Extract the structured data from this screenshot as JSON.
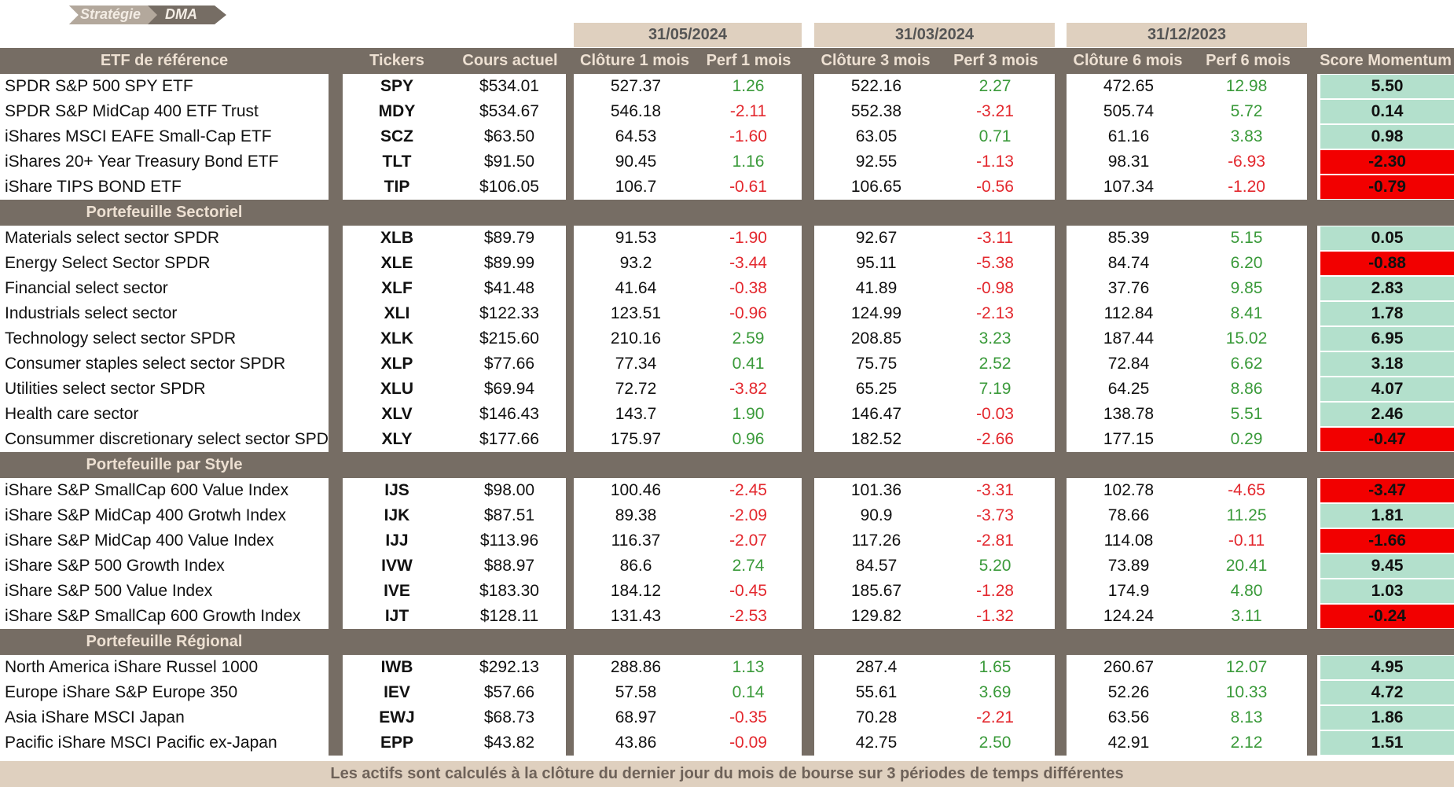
{
  "logo": {
    "part1": "Stratégie",
    "part2": "DMA"
  },
  "colors": {
    "brown": "#766d64",
    "beige": "#dfd0bf",
    "score_positive": "#b3e0cc",
    "score_negative": "#f20000",
    "text_positive": "#3a9a3a",
    "text_negative": "#e3282e"
  },
  "dates": [
    "31/05/2024",
    "31/03/2024",
    "31/12/2023"
  ],
  "columns": {
    "etf": "ETF de référence",
    "tickers": "Tickers",
    "price": "Cours actuel",
    "close1": "Clôture 1 mois",
    "perf1": "Perf 1 mois",
    "close3": "Clôture 3 mois",
    "perf3": "Perf 3 mois",
    "close6": "Clôture 6 mois",
    "perf6": "Perf 6 mois",
    "score": "Score Momentum"
  },
  "sections": [
    {
      "title": "",
      "rows": [
        {
          "name": "SPDR S&P 500 SPY ETF",
          "ticker": "SPY",
          "price": "$534.01",
          "c1": "527.37",
          "p1": "1.26",
          "c3": "522.16",
          "p3": "2.27",
          "c6": "472.65",
          "p6": "12.98",
          "score": "5.50"
        },
        {
          "name": "SPDR S&P MidCap 400 ETF Trust",
          "ticker": "MDY",
          "price": "$534.67",
          "c1": "546.18",
          "p1": "-2.11",
          "c3": "552.38",
          "p3": "-3.21",
          "c6": "505.74",
          "p6": "5.72",
          "score": "0.14"
        },
        {
          "name": "iShares MSCI EAFE Small-Cap ETF",
          "ticker": "SCZ",
          "price": "$63.50",
          "c1": "64.53",
          "p1": "-1.60",
          "c3": "63.05",
          "p3": "0.71",
          "c6": "61.16",
          "p6": "3.83",
          "score": "0.98"
        },
        {
          "name": "iShares 20+ Year Treasury Bond ETF",
          "ticker": "TLT",
          "price": "$91.50",
          "c1": "90.45",
          "p1": "1.16",
          "c3": "92.55",
          "p3": "-1.13",
          "c6": "98.31",
          "p6": "-6.93",
          "score": "-2.30"
        },
        {
          "name": "iShare TIPS BOND ETF",
          "ticker": "TIP",
          "price": "$106.05",
          "c1": "106.7",
          "p1": "-0.61",
          "c3": "106.65",
          "p3": "-0.56",
          "c6": "107.34",
          "p6": "-1.20",
          "score": "-0.79"
        }
      ]
    },
    {
      "title": "Portefeuille Sectoriel",
      "rows": [
        {
          "name": "Materials select sector SPDR",
          "ticker": "XLB",
          "price": "$89.79",
          "c1": "91.53",
          "p1": "-1.90",
          "c3": "92.67",
          "p3": "-3.11",
          "c6": "85.39",
          "p6": "5.15",
          "score": "0.05"
        },
        {
          "name": "Energy Select Sector SPDR",
          "ticker": "XLE",
          "price": "$89.99",
          "c1": "93.2",
          "p1": "-3.44",
          "c3": "95.11",
          "p3": "-5.38",
          "c6": "84.74",
          "p6": "6.20",
          "score": "-0.88"
        },
        {
          "name": "Financial select sector",
          "ticker": "XLF",
          "price": "$41.48",
          "c1": "41.64",
          "p1": "-0.38",
          "c3": "41.89",
          "p3": "-0.98",
          "c6": "37.76",
          "p6": "9.85",
          "score": "2.83"
        },
        {
          "name": "Industrials select sector",
          "ticker": "XLI",
          "price": "$122.33",
          "c1": "123.51",
          "p1": "-0.96",
          "c3": "124.99",
          "p3": "-2.13",
          "c6": "112.84",
          "p6": "8.41",
          "score": "1.78"
        },
        {
          "name": "Technology select sector SPDR",
          "ticker": "XLK",
          "price": "$215.60",
          "c1": "210.16",
          "p1": "2.59",
          "c3": "208.85",
          "p3": "3.23",
          "c6": "187.44",
          "p6": "15.02",
          "score": "6.95"
        },
        {
          "name": "Consumer staples select sector SPDR",
          "ticker": "XLP",
          "price": "$77.66",
          "c1": "77.34",
          "p1": "0.41",
          "c3": "75.75",
          "p3": "2.52",
          "c6": "72.84",
          "p6": "6.62",
          "score": "3.18"
        },
        {
          "name": "Utilities select sector SPDR",
          "ticker": "XLU",
          "price": "$69.94",
          "c1": "72.72",
          "p1": "-3.82",
          "c3": "65.25",
          "p3": "7.19",
          "c6": "64.25",
          "p6": "8.86",
          "score": "4.07"
        },
        {
          "name": "Health care sector",
          "ticker": "XLV",
          "price": "$146.43",
          "c1": "143.7",
          "p1": "1.90",
          "c3": "146.47",
          "p3": "-0.03",
          "c6": "138.78",
          "p6": "5.51",
          "score": "2.46"
        },
        {
          "name": "Consummer discretionary select sector SPDR",
          "ticker": "XLY",
          "price": "$177.66",
          "c1": "175.97",
          "p1": "0.96",
          "c3": "182.52",
          "p3": "-2.66",
          "c6": "177.15",
          "p6": "0.29",
          "score": "-0.47"
        }
      ]
    },
    {
      "title": "Portefeuille par Style",
      "rows": [
        {
          "name": "iShare S&P SmallCap 600 Value Index",
          "ticker": "IJS",
          "price": "$98.00",
          "c1": "100.46",
          "p1": "-2.45",
          "c3": "101.36",
          "p3": "-3.31",
          "c6": "102.78",
          "p6": "-4.65",
          "score": "-3.47"
        },
        {
          "name": "iShare S&P MidCap 400 Grotwh Index",
          "ticker": "IJK",
          "price": "$87.51",
          "c1": "89.38",
          "p1": "-2.09",
          "c3": "90.9",
          "p3": "-3.73",
          "c6": "78.66",
          "p6": "11.25",
          "score": "1.81"
        },
        {
          "name": "iShare S&P MidCap 400 Value Index",
          "ticker": "IJJ",
          "price": "$113.96",
          "c1": "116.37",
          "p1": "-2.07",
          "c3": "117.26",
          "p3": "-2.81",
          "c6": "114.08",
          "p6": "-0.11",
          "score": "-1.66"
        },
        {
          "name": "iShare S&P 500 Growth Index",
          "ticker": "IVW",
          "price": "$88.97",
          "c1": "86.6",
          "p1": "2.74",
          "c3": "84.57",
          "p3": "5.20",
          "c6": "73.89",
          "p6": "20.41",
          "score": "9.45"
        },
        {
          "name": "iShare S&P 500 Value Index",
          "ticker": "IVE",
          "price": "$183.30",
          "c1": "184.12",
          "p1": "-0.45",
          "c3": "185.67",
          "p3": "-1.28",
          "c6": "174.9",
          "p6": "4.80",
          "score": "1.03"
        },
        {
          "name": "iShare S&P SmallCap 600 Growth Index",
          "ticker": "IJT",
          "price": "$128.11",
          "c1": "131.43",
          "p1": "-2.53",
          "c3": "129.82",
          "p3": "-1.32",
          "c6": "124.24",
          "p6": "3.11",
          "score": "-0.24"
        }
      ]
    },
    {
      "title": "Portefeuille Régional",
      "rows": [
        {
          "name": "North America iShare Russel 1000",
          "ticker": "IWB",
          "price": "$292.13",
          "c1": "288.86",
          "p1": "1.13",
          "c3": "287.4",
          "p3": "1.65",
          "c6": "260.67",
          "p6": "12.07",
          "score": "4.95"
        },
        {
          "name": "Europe iShare S&P Europe 350",
          "ticker": "IEV",
          "price": "$57.66",
          "c1": "57.58",
          "p1": "0.14",
          "c3": "55.61",
          "p3": "3.69",
          "c6": "52.26",
          "p6": "10.33",
          "score": "4.72"
        },
        {
          "name": "Asia iShare MSCI Japan",
          "ticker": "EWJ",
          "price": "$68.73",
          "c1": "68.97",
          "p1": "-0.35",
          "c3": "70.28",
          "p3": "-2.21",
          "c6": "63.56",
          "p6": "8.13",
          "score": "1.86"
        },
        {
          "name": "Pacific iShare MSCI Pacific ex-Japan",
          "ticker": "EPP",
          "price": "$43.82",
          "c1": "43.86",
          "p1": "-0.09",
          "c3": "42.75",
          "p3": "2.50",
          "c6": "42.91",
          "p6": "2.12",
          "score": "1.51"
        }
      ]
    }
  ],
  "footer": "Les actifs sont calculés à la clôture du dernier jour du mois de bourse sur 3 périodes de temps différentes"
}
